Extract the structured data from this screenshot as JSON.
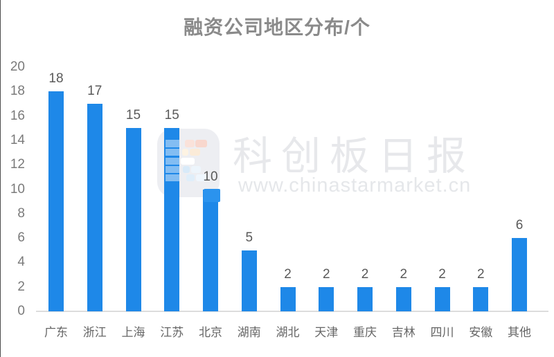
{
  "page": {
    "title": "融资公司地区分布/个"
  },
  "watermark": {
    "brand": "科创板日报",
    "url": "www.chinastarmarket.cn"
  },
  "icons": {
    "watermark_logo": "star-market-daily-logo"
  },
  "colors": {
    "bar": "#1E88E8",
    "title_text": "#8a8a8a",
    "axis_tick_text": "#7a7a7a",
    "value_label_text": "#595959",
    "category_label_text": "#666666",
    "axis_line": "#dcdcdc",
    "watermark_text": "#e7e8eb",
    "watermark_logo_bg": "#edeef2",
    "watermark_logo_accent": "#2b93ee"
  },
  "chart_data": {
    "type": "bar",
    "title": "融资公司地区分布/个",
    "categories": [
      "广东",
      "浙江",
      "上海",
      "江苏",
      "北京",
      "湖南",
      "湖北",
      "天津",
      "重庆",
      "吉林",
      "四川",
      "安徽",
      "其他"
    ],
    "values": [
      18,
      17,
      15,
      15,
      10,
      5,
      2,
      2,
      2,
      2,
      2,
      2,
      6
    ],
    "xlabel": "",
    "ylabel": "",
    "ylim": [
      0,
      20
    ],
    "y_ticks": [
      0,
      2,
      4,
      6,
      8,
      10,
      12,
      14,
      16,
      18,
      20
    ],
    "grid": false,
    "legend": "none",
    "value_labels": true,
    "bar_color": "#1E88E8"
  }
}
